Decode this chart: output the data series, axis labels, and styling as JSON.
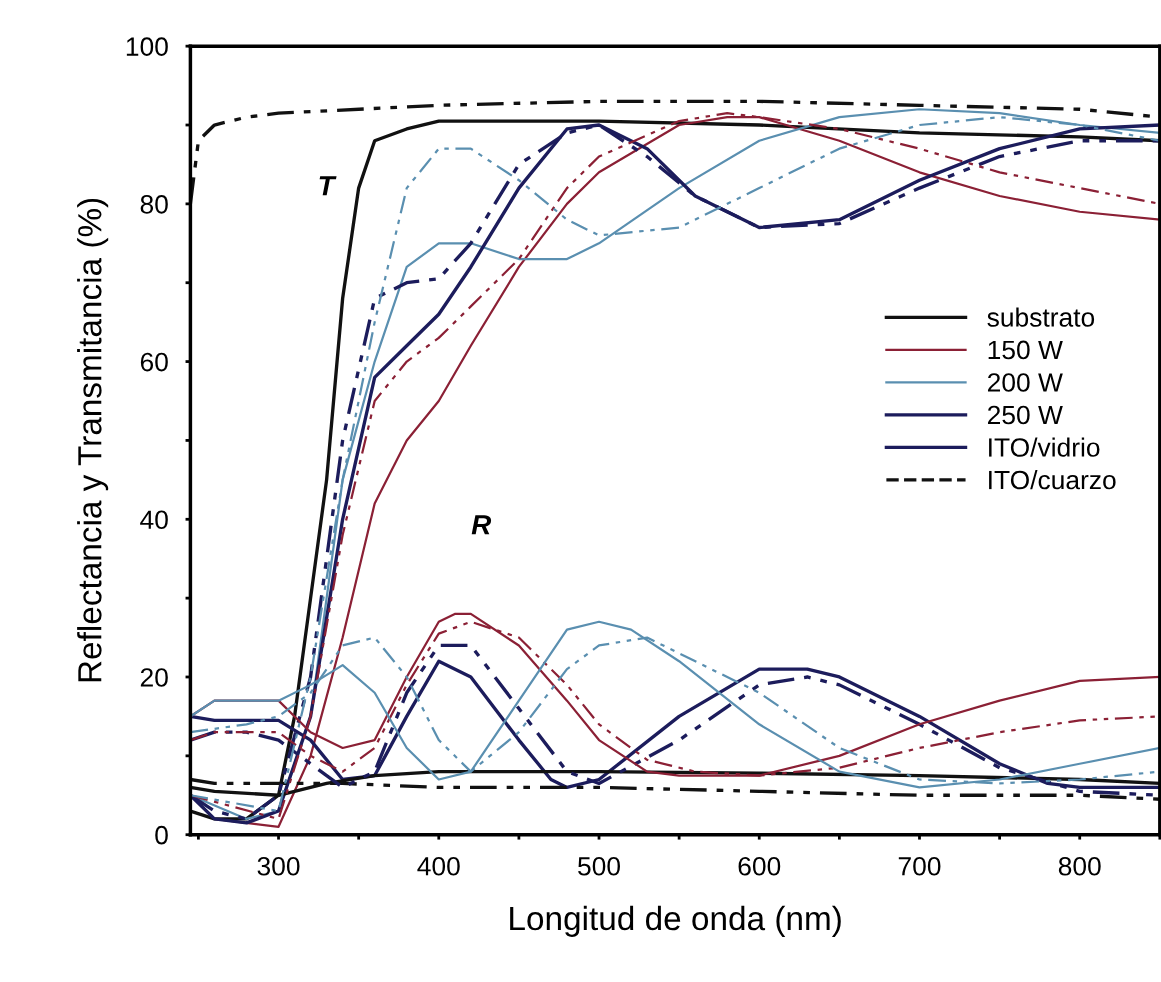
{
  "chart_data": {
    "type": "line",
    "xlabel": "Longitud de onda (nm)",
    "ylabel": "Reflectancia y Transmitancia (%)",
    "xlim": [
      245,
      850
    ],
    "ylim": [
      0,
      100
    ],
    "xticks": [
      {
        "value": 250,
        "label": null
      },
      300,
      {
        "value": 350,
        "label": null
      },
      400,
      {
        "value": 450,
        "label": null
      },
      500,
      {
        "value": 550,
        "label": null
      },
      600,
      {
        "value": 650,
        "label": null
      },
      700,
      {
        "value": 750,
        "label": null
      },
      800,
      {
        "value": 850,
        "label": null
      }
    ],
    "yticks": [
      0,
      {
        "value": 10,
        "label": null
      },
      20,
      {
        "value": 30,
        "label": null
      },
      40,
      {
        "value": 50,
        "label": null
      },
      60,
      {
        "value": 70,
        "label": null
      },
      80,
      {
        "value": 90,
        "label": null
      },
      100
    ],
    "grid": false,
    "legend": "right",
    "marker": "none",
    "annotations": [
      "T",
      "R"
    ],
    "series": [
      {
        "name": "substrato",
        "color": "#111111",
        "line_style": "solid",
        "x": [
          245,
          260,
          280,
          300,
          310,
          320,
          330,
          340,
          350,
          360,
          380,
          400,
          500,
          600,
          700,
          800,
          850
        ],
        "values": [
          3,
          2,
          2,
          5,
          15,
          30,
          45,
          68,
          82,
          88,
          89.5,
          90.5,
          90.5,
          90,
          89,
          88.5,
          88
        ]
      },
      {
        "name": "150 W",
        "color": "#8b2035",
        "line_style": "solid",
        "x": [
          245,
          260,
          300,
          320,
          340,
          360,
          380,
          400,
          420,
          450,
          480,
          500,
          550,
          580,
          600,
          650,
          700,
          750,
          800,
          850
        ],
        "values": [
          5,
          2,
          1,
          10,
          25,
          42,
          50,
          55,
          62,
          72,
          80,
          84,
          90,
          91,
          91,
          88,
          84,
          81,
          79,
          78
        ]
      },
      {
        "name": "200 W",
        "color": "#5a8fb0",
        "line_style": "solid",
        "x": [
          245,
          280,
          300,
          320,
          340,
          360,
          380,
          400,
          420,
          450,
          480,
          500,
          550,
          600,
          650,
          700,
          750,
          800,
          850
        ],
        "values": [
          5,
          2,
          3,
          15,
          45,
          60,
          72,
          75,
          75,
          73,
          73,
          75,
          82,
          88,
          91,
          92,
          91.5,
          90,
          89
        ]
      },
      {
        "name": "250 W",
        "color": "#1c1c5c",
        "line_style": "solid",
        "x": [
          245,
          260,
          280,
          300,
          320,
          340,
          360,
          380,
          400,
          420,
          450,
          480,
          500,
          530,
          560,
          600,
          650,
          700,
          750,
          800,
          850
        ],
        "values": [
          5,
          2,
          1.5,
          3,
          15,
          40,
          58,
          62,
          66,
          72,
          82,
          89.5,
          90,
          87,
          81,
          77,
          78,
          83,
          87,
          89.5,
          90
        ]
      },
      {
        "name": "ITO/vidrio",
        "color": "#1c1c5c",
        "line_style": "solid",
        "x": [
          245,
          260,
          280,
          300,
          320,
          340,
          360,
          380,
          400,
          420,
          450,
          470,
          480,
          500,
          550,
          600,
          630,
          650,
          700,
          750,
          780,
          800,
          850
        ],
        "values": [
          15,
          14.5,
          14.5,
          14.5,
          12,
          7,
          7.5,
          15,
          22,
          20,
          12,
          7,
          6,
          7,
          15,
          21,
          21,
          20,
          15,
          9,
          6.5,
          6,
          6
        ]
      },
      {
        "name": "ITO/cuarzo",
        "color": "#111111",
        "line_style": "dashdot",
        "x": [
          245,
          250,
          260,
          280,
          300,
          400,
          500,
          600,
          700,
          800,
          850
        ],
        "values": [
          80,
          88,
          90,
          91,
          91.5,
          92.5,
          93,
          93,
          92.5,
          92,
          91
        ]
      },
      {
        "color": "#111111",
        "line_style": "solid",
        "x": [
          245,
          260,
          300,
          330,
          360,
          400,
          500,
          600,
          700,
          800,
          850
        ],
        "values": [
          6,
          5.5,
          5,
          6.5,
          7.5,
          8,
          8,
          7.8,
          7.5,
          7,
          6.5
        ]
      },
      {
        "color": "#111111",
        "line_style": "dashdot",
        "x": [
          245,
          260,
          300,
          340,
          400,
          500,
          600,
          700,
          800,
          850
        ],
        "values": [
          7,
          6.5,
          6.5,
          6.5,
          6,
          6,
          5.5,
          5,
          5,
          4.5
        ]
      },
      {
        "color": "#1c1c5c",
        "line_style": "dashdot",
        "x": [
          245,
          260,
          280,
          300,
          320,
          340,
          360,
          380,
          400,
          420,
          450,
          480,
          500,
          530,
          560,
          600,
          650,
          700,
          750,
          800,
          850
        ],
        "values": [
          5,
          3,
          2,
          5,
          20,
          50,
          68,
          70,
          70.5,
          75,
          85,
          89,
          90,
          86,
          81,
          77,
          77.5,
          82,
          86,
          88,
          88
        ]
      },
      {
        "color": "#1c1c5c",
        "line_style": "dashdot",
        "x": [
          245,
          260,
          280,
          300,
          320,
          340,
          360,
          380,
          400,
          420,
          450,
          480,
          500,
          550,
          600,
          630,
          650,
          700,
          750,
          800,
          850
        ],
        "values": [
          12,
          13,
          13,
          12,
          9,
          6,
          8,
          18,
          24,
          24,
          16,
          8,
          6.5,
          12,
          19,
          20,
          19,
          14,
          8.5,
          5.5,
          5
        ]
      },
      {
        "color": "#8b2035",
        "line_style": "dashdot",
        "x": [
          245,
          300,
          320,
          340,
          360,
          380,
          400,
          420,
          450,
          480,
          500,
          550,
          580,
          600,
          650,
          700,
          750,
          800,
          850
        ],
        "values": [
          5,
          2,
          15,
          38,
          55,
          60,
          63,
          67,
          73,
          82,
          86,
          90.5,
          91.5,
          91,
          89.5,
          87,
          84,
          82,
          80
        ]
      },
      {
        "color": "#8b2035",
        "line_style": "solid",
        "x": [
          245,
          260,
          300,
          320,
          340,
          360,
          380,
          400,
          410,
          420,
          450,
          480,
          500,
          530,
          550,
          600,
          650,
          700,
          750,
          800,
          850
        ],
        "values": [
          15,
          17,
          17,
          13,
          11,
          12,
          20,
          27,
          28,
          28,
          24,
          17,
          12,
          8,
          7.5,
          7.5,
          10,
          14,
          17,
          19.5,
          20
        ]
      },
      {
        "color": "#8b2035",
        "line_style": "dashdot",
        "x": [
          245,
          260,
          300,
          320,
          340,
          360,
          380,
          400,
          420,
          450,
          480,
          500,
          530,
          560,
          600,
          650,
          700,
          750,
          800,
          850
        ],
        "values": [
          12,
          13,
          13,
          10,
          8,
          11,
          19,
          25.5,
          27,
          25,
          19,
          14,
          9.5,
          8,
          7.5,
          8.5,
          11,
          13,
          14.5,
          15
        ]
      },
      {
        "color": "#5a8fb0",
        "line_style": "dashdot",
        "x": [
          245,
          300,
          320,
          340,
          360,
          380,
          400,
          420,
          450,
          480,
          500,
          550,
          600,
          650,
          700,
          750,
          800,
          850
        ],
        "values": [
          5,
          3,
          20,
          45,
          65,
          82,
          87,
          87,
          83,
          78,
          76,
          77,
          82,
          87,
          90,
          91,
          90,
          88
        ]
      },
      {
        "color": "#5a8fb0",
        "line_style": "solid",
        "x": [
          245,
          260,
          300,
          320,
          340,
          360,
          380,
          400,
          420,
          450,
          480,
          500,
          520,
          550,
          600,
          650,
          700,
          750,
          800,
          850
        ],
        "values": [
          15,
          17,
          17,
          19,
          21.5,
          18,
          11,
          7,
          8,
          17,
          26,
          27,
          26,
          22,
          14,
          8,
          6,
          7,
          9,
          11
        ]
      },
      {
        "color": "#5a8fb0",
        "line_style": "dashdot",
        "x": [
          245,
          280,
          300,
          320,
          340,
          360,
          380,
          400,
          420,
          450,
          480,
          500,
          530,
          550,
          600,
          650,
          700,
          750,
          800,
          850
        ],
        "values": [
          13,
          14,
          15,
          18,
          24,
          25,
          20,
          12,
          8,
          13,
          21,
          24,
          25,
          23,
          18,
          11,
          7,
          6.5,
          7,
          8
        ]
      }
    ]
  }
}
